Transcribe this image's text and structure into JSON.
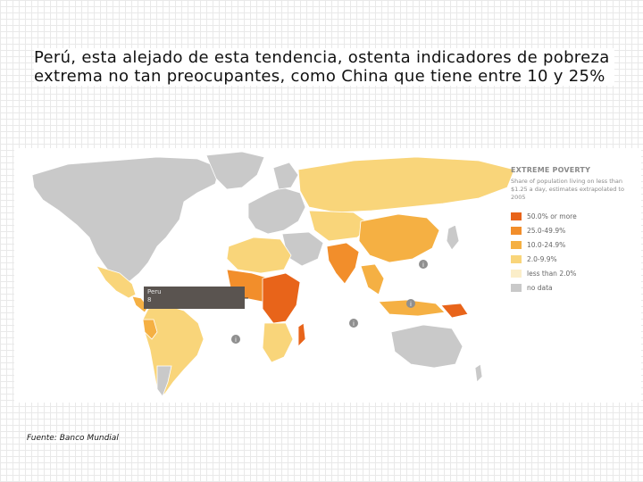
{
  "heading": "Perú, esta alejado de esta tendencia, ostenta indicadores de pobreza extrema no tan preocupantes, como China que tiene entre 10 y 25%",
  "legend": {
    "title": "EXTREME POVERTY",
    "subtitle": "Share of population living on less than $1.25 a day, estimates extrapolated to 2005",
    "items": [
      {
        "label": "50.0% or more",
        "color": "#e8641a"
      },
      {
        "label": "25.0-49.9%",
        "color": "#f28e2b"
      },
      {
        "label": "10.0-24.9%",
        "color": "#f5b043"
      },
      {
        "label": "2.0-9.9%",
        "color": "#f9d57a"
      },
      {
        "label": "less than 2.0%",
        "color": "#fbeec9"
      },
      {
        "label": "no data",
        "color": "#c9c9c9"
      }
    ]
  },
  "callout": {
    "name": "Peru",
    "value": "8"
  },
  "source": "Fuente: Banco Mundial",
  "colors": {
    "no_data": "#c9c9c9",
    "very_high": "#e8641a",
    "high": "#f28e2b",
    "mid": "#f5b043",
    "low": "#f9d57a",
    "very_low": "#fbeec9",
    "info_badge": "#8f8f8f"
  },
  "map_icons": [
    "info-icon",
    "info-icon",
    "info-icon",
    "info-icon"
  ]
}
